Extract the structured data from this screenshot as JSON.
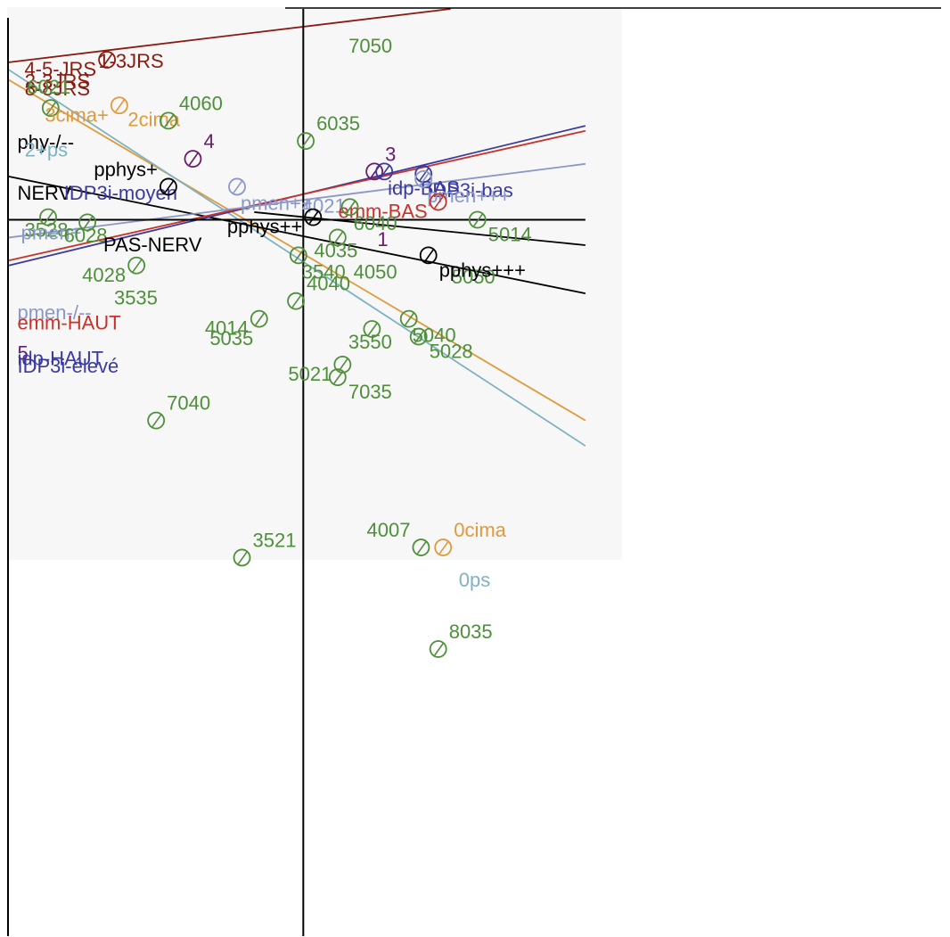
{
  "chart_data": {
    "type": "scatter",
    "title": "",
    "xlabel": "",
    "ylabel": "",
    "xlim": [
      -1.2,
      2.6
    ],
    "ylim": [
      -2.45,
      1.2
    ],
    "grid": false,
    "legend": "none",
    "colors": {
      "green": "#4e8f3a",
      "darkred": "#8b1a10",
      "orange": "#e09a3a",
      "lightblue": "#7fb3c2",
      "black": "#000000",
      "purple": "#6a1a6a",
      "navy": "#3a3aa0",
      "red": "#c8322a",
      "slate": "#8a97c8"
    },
    "points": [
      {
        "label": "7050",
        "x": 0.17,
        "y": 1.12,
        "color": "green",
        "anchor": "right",
        "marker": false
      },
      {
        "label": "1-3JRS",
        "x": -0.85,
        "y": 1.06,
        "color": "darkred",
        "anchor": "right",
        "marker": false
      },
      {
        "label": "4-5-JRS",
        "x": -0.8,
        "y": 1.0,
        "color": "darkred",
        "anchor": "left",
        "marker": true
      },
      {
        "label": "2-3JRS",
        "x": -1.15,
        "y": 0.98,
        "color": "darkred",
        "anchor": "right",
        "marker": false
      },
      {
        "label": "8-8JRS",
        "x": -1.15,
        "y": 0.95,
        "color": "darkred",
        "anchor": "right",
        "marker": false
      },
      {
        "label": "6021",
        "x": -1.03,
        "y": 0.81,
        "color": "green",
        "anchor": "top",
        "marker": true
      },
      {
        "label": "2cima",
        "x": -0.73,
        "y": 0.83,
        "color": "orange",
        "anchor": "right",
        "marker": false
      },
      {
        "label": "3cima+",
        "x": -0.75,
        "y": 0.82,
        "color": "orange",
        "anchor": "left",
        "marker": true
      },
      {
        "label": "4060",
        "x": -0.55,
        "y": 0.76,
        "color": "green",
        "anchor": "topright",
        "marker": true
      },
      {
        "label": "phy-/--",
        "x": -1.18,
        "y": 0.74,
        "color": "black",
        "anchor": "right",
        "marker": false
      },
      {
        "label": "2+ps",
        "x": -1.15,
        "y": 0.71,
        "color": "lightblue",
        "anchor": "right",
        "marker": false
      },
      {
        "label": "6035",
        "x": 0.01,
        "y": 0.68,
        "color": "green",
        "anchor": "topright",
        "marker": true
      },
      {
        "label": "4",
        "x": -0.45,
        "y": 0.61,
        "color": "purple",
        "anchor": "topright",
        "marker": true
      },
      {
        "label": "3",
        "x": 0.29,
        "y": 0.56,
        "color": "purple",
        "anchor": "topright",
        "marker": true
      },
      {
        "label": "idp-BAS",
        "x": 0.33,
        "y": 0.56,
        "color": "navy",
        "anchor": "right",
        "marker": true
      },
      {
        "label": "IDP3i-bas",
        "x": 0.49,
        "y": 0.55,
        "color": "navy",
        "anchor": "right",
        "marker": true
      },
      {
        "label": "NERV",
        "x": -1.18,
        "y": 0.54,
        "color": "black",
        "anchor": "right",
        "marker": false
      },
      {
        "label": "IDP3i-moyen",
        "x": -0.99,
        "y": 0.54,
        "color": "navy",
        "anchor": "right",
        "marker": false
      },
      {
        "label": "pphys+",
        "x": -0.55,
        "y": 0.5,
        "color": "black",
        "anchor": "topleft",
        "marker": true
      },
      {
        "label": "pmen++",
        "x": -0.27,
        "y": 0.5,
        "color": "slate",
        "anchor": "right",
        "marker": true
      },
      {
        "label": "4021",
        "x": -0.02,
        "y": 0.49,
        "color": "slate",
        "anchor": "right",
        "marker": false
      },
      {
        "label": "pmen+++",
        "x": 0.49,
        "y": 0.53,
        "color": "slate",
        "anchor": "right",
        "marker": true
      },
      {
        "label": "emm-BAS",
        "x": 0.55,
        "y": 0.44,
        "color": "red",
        "anchor": "left",
        "marker": true
      },
      {
        "label": "6040",
        "x": 0.19,
        "y": 0.42,
        "color": "green",
        "anchor": "right",
        "marker": true
      },
      {
        "label": "3528",
        "x": -1.04,
        "y": 0.38,
        "color": "green",
        "anchor": "bottom",
        "marker": true
      },
      {
        "label": "pmen+",
        "x": -1.02,
        "y": 0.37,
        "color": "slate",
        "anchor": "bottom",
        "marker": false
      },
      {
        "label": "6028",
        "x": -0.88,
        "y": 0.36,
        "color": "green",
        "anchor": "bottom",
        "marker": true
      },
      {
        "label": "pphys++",
        "x": 0.04,
        "y": 0.38,
        "color": "black",
        "anchor": "left",
        "marker": true
      },
      {
        "label": "1",
        "x": 0.39,
        "y": 0.33,
        "color": "purple",
        "anchor": "left",
        "marker": false
      },
      {
        "label": "5014",
        "x": 0.71,
        "y": 0.37,
        "color": "green",
        "anchor": "bottomright",
        "marker": true
      },
      {
        "label": "PAS-NERV",
        "x": -0.37,
        "y": 0.33,
        "color": "black",
        "anchor": "bottomleft",
        "marker": false
      },
      {
        "label": "4035",
        "x": 0.14,
        "y": 0.3,
        "color": "green",
        "anchor": "bottom",
        "marker": true
      },
      {
        "label": "3540",
        "x": -0.02,
        "y": 0.23,
        "color": "green",
        "anchor": "right",
        "marker": true
      },
      {
        "label": "4050",
        "x": 0.19,
        "y": 0.23,
        "color": "green",
        "anchor": "right",
        "marker": false
      },
      {
        "label": "5050",
        "x": 0.59,
        "y": 0.21,
        "color": "green",
        "anchor": "right",
        "marker": false
      },
      {
        "label": "pphys+++",
        "x": 0.51,
        "y": 0.23,
        "color": "black",
        "anchor": "bottomright",
        "marker": true
      },
      {
        "label": "4028",
        "x": -0.68,
        "y": 0.19,
        "color": "green",
        "anchor": "left",
        "marker": true
      },
      {
        "label": "pmen-/--",
        "x": -1.18,
        "y": 0.07,
        "color": "slate",
        "anchor": "right",
        "marker": false
      },
      {
        "label": "3535",
        "x": -0.55,
        "y": 0.1,
        "color": "green",
        "anchor": "left",
        "marker": false
      },
      {
        "label": "4040",
        "x": -0.03,
        "y": 0.05,
        "color": "green",
        "anchor": "topright",
        "marker": true
      },
      {
        "label": "emm-HAUT",
        "x": -1.18,
        "y": 0.03,
        "color": "red",
        "anchor": "right",
        "marker": false
      },
      {
        "label": "4014",
        "x": -0.18,
        "y": -0.02,
        "color": "green",
        "anchor": "left",
        "marker": true
      },
      {
        "label": "5040",
        "x": 0.43,
        "y": -0.02,
        "color": "green",
        "anchor": "right",
        "marker": true
      },
      {
        "label": "5035",
        "x": -0.16,
        "y": -0.06,
        "color": "green",
        "anchor": "left",
        "marker": false
      },
      {
        "label": "3550",
        "x": 0.28,
        "y": -0.06,
        "color": "green",
        "anchor": "bottom",
        "marker": true
      },
      {
        "label": "5",
        "x": -1.18,
        "y": -0.09,
        "color": "purple",
        "anchor": "right",
        "marker": false
      },
      {
        "label": "idp-HAUT",
        "x": -1.18,
        "y": -0.11,
        "color": "navy",
        "anchor": "right",
        "marker": false
      },
      {
        "label": "5028",
        "x": 0.47,
        "y": -0.09,
        "color": "green",
        "anchor": "bottomright",
        "marker": true
      },
      {
        "label": "IDP3i-élevé",
        "x": -1.18,
        "y": -0.14,
        "color": "navy",
        "anchor": "right",
        "marker": false
      },
      {
        "label": "5021",
        "x": 0.16,
        "y": -0.2,
        "color": "green",
        "anchor": "left",
        "marker": true
      },
      {
        "label": "7035",
        "x": 0.14,
        "y": -0.25,
        "color": "green",
        "anchor": "bottomright",
        "marker": true
      },
      {
        "label": "7040",
        "x": -0.6,
        "y": -0.42,
        "color": "green",
        "anchor": "topright",
        "marker": true
      },
      {
        "label": "3521",
        "x": -0.25,
        "y": -0.96,
        "color": "green",
        "anchor": "topright",
        "marker": true
      },
      {
        "label": "4007",
        "x": 0.48,
        "y": -0.92,
        "color": "green",
        "anchor": "topleft",
        "marker": true
      },
      {
        "label": "0cima",
        "x": 0.57,
        "y": -0.92,
        "color": "orange",
        "anchor": "topright",
        "marker": true
      },
      {
        "label": "0ps",
        "x": 0.59,
        "y": -0.99,
        "color": "lightblue",
        "anchor": "bottomright",
        "marker": false
      },
      {
        "label": "8035",
        "x": 0.55,
        "y": -1.32,
        "color": "green",
        "anchor": "topright",
        "marker": true
      }
    ],
    "lines": [
      {
        "color": "darkred",
        "from": [
          -1.2,
          0.99
        ],
        "to": [
          0.6,
          1.2
        ]
      },
      {
        "color": "orange",
        "from": [
          -1.2,
          0.92
        ],
        "to": [
          1.15,
          -0.42
        ]
      },
      {
        "color": "lightblue",
        "from": [
          -1.2,
          0.96
        ],
        "to": [
          1.15,
          -0.52
        ]
      },
      {
        "color": "black",
        "from": [
          -1.2,
          0.54
        ],
        "to": [
          1.15,
          0.08
        ]
      },
      {
        "color": "black",
        "from": [
          -0.2,
          0.4
        ],
        "to": [
          1.15,
          0.27
        ]
      },
      {
        "color": "navy",
        "from": [
          -1.2,
          0.19
        ],
        "to": [
          1.15,
          0.74
        ]
      },
      {
        "color": "red",
        "from": [
          -1.2,
          0.21
        ],
        "to": [
          1.15,
          0.72
        ]
      },
      {
        "color": "slate",
        "from": [
          -1.2,
          0.3
        ],
        "to": [
          1.15,
          0.59
        ]
      }
    ]
  }
}
